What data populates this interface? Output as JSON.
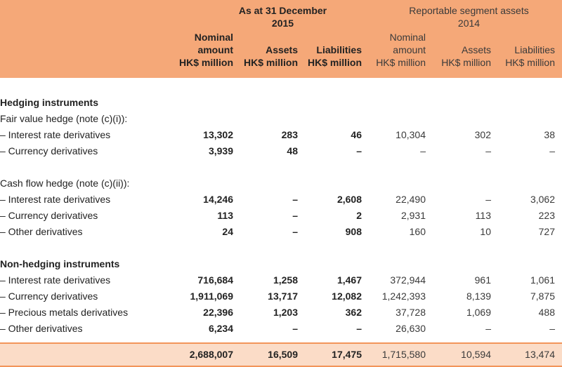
{
  "header": {
    "group_2015": [
      "As at 31 December",
      "2015"
    ],
    "group_2014": [
      "Reportable segment assets",
      "2014"
    ],
    "cols_2015": [
      {
        "lines": [
          "Nominal",
          "amount",
          "HK$ million"
        ]
      },
      {
        "lines": [
          "Assets",
          "HK$ million"
        ]
      },
      {
        "lines": [
          "Liabilities",
          "HK$ million"
        ]
      }
    ],
    "cols_2014": [
      {
        "lines": [
          "Nominal",
          "amount",
          "HK$ million"
        ]
      },
      {
        "lines": [
          "Assets",
          "HK$ million"
        ]
      },
      {
        "lines": [
          "Liabilities",
          "HK$ million"
        ]
      }
    ]
  },
  "rows": [
    {
      "type": "section",
      "label": "Hedging instruments",
      "values": []
    },
    {
      "type": "sub",
      "label": "Fair value hedge (note (c)(i)):",
      "values": []
    },
    {
      "type": "item",
      "label": "– Interest rate derivatives",
      "values": [
        "13,302",
        "283",
        "46",
        "10,304",
        "302",
        "38"
      ]
    },
    {
      "type": "item",
      "label": "– Currency derivatives",
      "values": [
        "3,939",
        "48",
        "–",
        "–",
        "–",
        "–"
      ]
    },
    {
      "type": "blank",
      "label": "",
      "values": []
    },
    {
      "type": "sub",
      "label": "Cash flow hedge (note (c)(ii)):",
      "values": []
    },
    {
      "type": "item",
      "label": "– Interest rate derivatives",
      "values": [
        "14,246",
        "–",
        "2,608",
        "22,490",
        "–",
        "3,062"
      ]
    },
    {
      "type": "item",
      "label": "– Currency derivatives",
      "values": [
        "113",
        "–",
        "2",
        "2,931",
        "113",
        "223"
      ]
    },
    {
      "type": "item",
      "label": "– Other derivatives",
      "values": [
        "24",
        "–",
        "908",
        "160",
        "10",
        "727"
      ]
    },
    {
      "type": "blank",
      "label": "",
      "values": []
    },
    {
      "type": "section",
      "label": "Non-hedging instruments",
      "values": []
    },
    {
      "type": "item",
      "label": "– Interest rate derivatives",
      "values": [
        "716,684",
        "1,258",
        "1,467",
        "372,944",
        "961",
        "1,061"
      ]
    },
    {
      "type": "item",
      "label": "– Currency derivatives",
      "values": [
        "1,911,069",
        "13,717",
        "12,082",
        "1,242,393",
        "8,139",
        "7,875"
      ]
    },
    {
      "type": "item",
      "label": "– Precious metals derivatives",
      "values": [
        "22,396",
        "1,203",
        "362",
        "37,728",
        "1,069",
        "488"
      ]
    },
    {
      "type": "item",
      "label": "– Other derivatives",
      "values": [
        "6,234",
        "–",
        "–",
        "26,630",
        "–",
        "–"
      ]
    }
  ],
  "total": [
    "2,688,007",
    "16,509",
    "17,475",
    "1,715,580",
    "10,594",
    "13,474"
  ]
}
